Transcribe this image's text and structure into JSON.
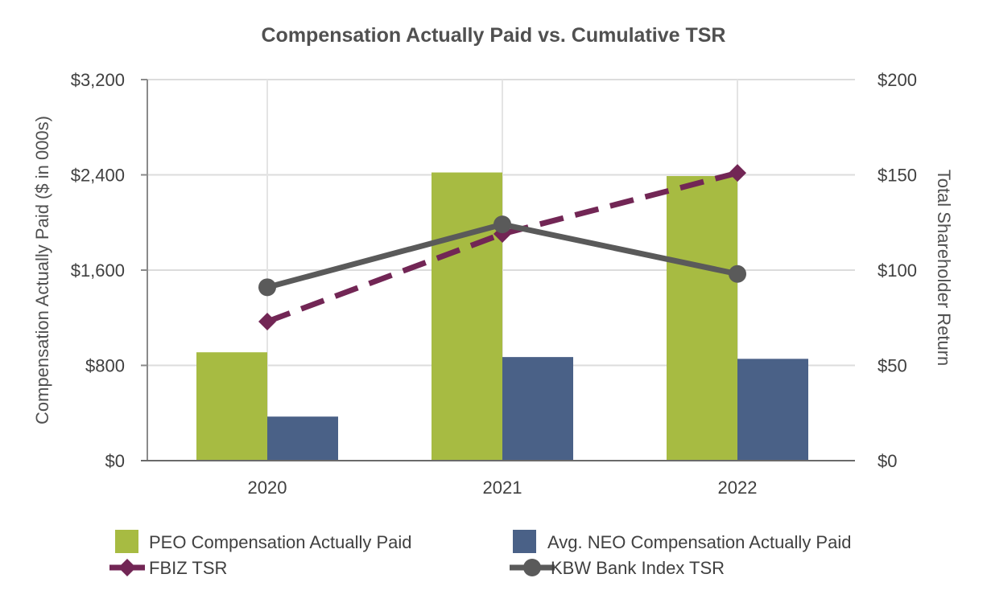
{
  "chart_data": {
    "type": "bar",
    "title": "Compensation Actually Paid vs. Cumulative TSR",
    "categories": [
      "2020",
      "2021",
      "2022"
    ],
    "ylabel": "Compensation Actually Paid ($ in 000s)",
    "y2label": "Total Shareholder Return",
    "ylim": [
      0,
      3200
    ],
    "y2lim": [
      0,
      200
    ],
    "yticks": [
      0,
      800,
      1600,
      2400,
      3200
    ],
    "yticklabels": [
      "$0",
      "$800",
      "$1,600",
      "$2,400",
      "$3,200"
    ],
    "y2ticks": [
      0,
      50,
      100,
      150,
      200
    ],
    "y2ticklabels": [
      "$0",
      "$50",
      "$100",
      "$150",
      "$200"
    ],
    "grid": true,
    "legend_position": "bottom",
    "series": [
      {
        "name": "PEO Compensation Actually Paid",
        "type": "bar",
        "axis": "left",
        "color": "#a7bb42",
        "values": [
          910,
          2420,
          2390
        ]
      },
      {
        "name": "Avg. NEO Compensation Actually Paid",
        "type": "bar",
        "axis": "left",
        "color": "#4a6187",
        "values": [
          370,
          870,
          855
        ]
      },
      {
        "name": "FBIZ TSR",
        "type": "line",
        "axis": "right",
        "color": "#722655",
        "style": "dashed",
        "marker": "diamond",
        "values": [
          73,
          119,
          151
        ]
      },
      {
        "name": "KBW Bank Index TSR",
        "type": "line",
        "axis": "right",
        "color": "#5a5a5a",
        "style": "solid",
        "marker": "circle",
        "values": [
          91,
          124,
          98
        ]
      }
    ]
  }
}
